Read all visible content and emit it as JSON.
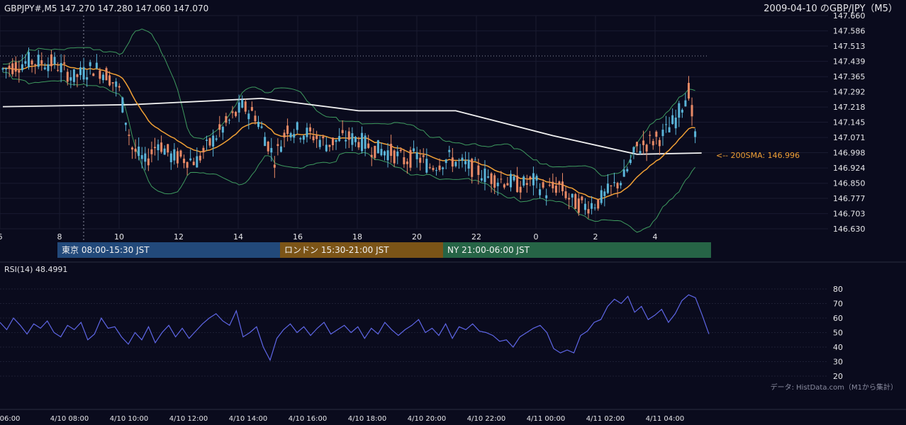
{
  "header": {
    "symbol_info": "GBPJPY#,M5 147.270 147.280 147.060 147.070",
    "title": "2009-04-10 のGBP/JPY（M5）"
  },
  "sessions": [
    {
      "label": "東京 08:00-15:30 JST",
      "color": "#22497a"
    },
    {
      "label": "ロンドン 15:30-21:00 JST",
      "color": "#7b5417"
    },
    {
      "label": "NY 21:00-06:00 JST",
      "color": "#266446"
    }
  ],
  "rsi_panel": {
    "label": "RSI(14) 48.4991"
  },
  "ma_label": "<-- 200SMA: 146.996",
  "source_note": "データ: HistData.com（M1から集計）",
  "colors": {
    "background": "#0a0b1d",
    "up_candle": "#5ab4d8",
    "down_candle": "#e98a66",
    "sma_200": "#f2f2f2",
    "ema": "#f0a035",
    "bollinger": "#3e9a5f",
    "rsi": "#5e66e6"
  },
  "chart_data": [
    {
      "type": "candlestick",
      "title": "GBPJPY#,M5 147.270 147.280 147.060 147.070",
      "y_ticks": [
        "147.660",
        "147.586",
        "147.513",
        "147.439",
        "147.365",
        "147.292",
        "147.218",
        "147.145",
        "147.071",
        "146.998",
        "146.924",
        "146.850",
        "146.777",
        "146.703",
        "146.630"
      ],
      "ylim": [
        146.63,
        147.66
      ],
      "x_ticks": [
        "6",
        "8",
        "10",
        "12",
        "14",
        "16",
        "18",
        "20",
        "22",
        "0",
        "2",
        "4"
      ],
      "bottom_time_labels": [
        "06:00",
        "4/10 08:00",
        "4/10 10:00",
        "4/10 12:00",
        "4/10 14:00",
        "4/10 16:00",
        "4/10 18:00",
        "4/10 20:00",
        "4/10 22:00",
        "4/11 00:00",
        "4/11 02:00",
        "4/11 04:00"
      ],
      "last_ohlc": {
        "open": 147.27,
        "high": 147.28,
        "low": 147.06,
        "close": 147.07
      },
      "overlays": [
        {
          "name": "200SMA",
          "last_value": 146.996
        },
        {
          "name": "EMA"
        },
        {
          "name": "Bollinger Bands"
        }
      ],
      "price_path": [
        [
          0,
          147.4
        ],
        [
          4,
          147.44
        ],
        [
          8,
          147.43
        ],
        [
          11,
          147.36
        ],
        [
          14,
          147.41
        ],
        [
          16,
          147.38
        ],
        [
          18,
          147.3
        ],
        [
          20,
          147.02
        ],
        [
          22,
          146.95
        ],
        [
          24,
          147.05
        ],
        [
          26,
          146.98
        ],
        [
          30,
          146.96
        ],
        [
          33,
          147.08
        ],
        [
          35,
          147.15
        ],
        [
          37,
          147.22
        ],
        [
          39,
          147.18
        ],
        [
          42,
          146.97
        ],
        [
          44,
          147.12
        ],
        [
          46,
          147.1
        ],
        [
          48,
          147.08
        ],
        [
          50,
          147.04
        ],
        [
          53,
          147.07
        ],
        [
          55,
          147.06
        ],
        [
          57,
          147.02
        ],
        [
          60,
          147.0
        ],
        [
          62,
          146.96
        ],
        [
          64,
          146.98
        ],
        [
          66,
          146.93
        ],
        [
          69,
          146.97
        ],
        [
          71,
          146.94
        ],
        [
          73,
          146.92
        ],
        [
          75,
          146.88
        ],
        [
          78,
          146.86
        ],
        [
          80,
          146.84
        ],
        [
          82,
          146.86
        ],
        [
          84,
          146.81
        ],
        [
          86,
          146.84
        ],
        [
          88,
          146.76
        ],
        [
          90,
          146.74
        ],
        [
          92,
          146.76
        ],
        [
          94,
          146.82
        ],
        [
          96,
          146.88
        ],
        [
          98,
          147.02
        ],
        [
          100,
          147.05
        ],
        [
          102,
          147.08
        ],
        [
          104,
          147.16
        ],
        [
          106,
          147.3
        ],
        [
          107,
          147.07
        ]
      ]
    },
    {
      "type": "line",
      "title": "RSI(14) 48.4991",
      "y_ticks": [
        "80",
        "70",
        "60",
        "50",
        "40",
        "30",
        "20"
      ],
      "ylim": [
        20,
        80
      ],
      "last_value": 48.4991,
      "values": [
        57,
        52,
        60,
        55,
        49,
        56,
        53,
        58,
        50,
        47,
        55,
        52,
        57,
        45,
        49,
        60,
        53,
        54,
        47,
        42,
        50,
        45,
        54,
        43,
        50,
        55,
        47,
        53,
        46,
        51,
        56,
        60,
        63,
        58,
        55,
        65,
        47,
        50,
        54,
        40,
        31,
        46,
        52,
        56,
        50,
        54,
        48,
        53,
        57,
        49,
        52,
        55,
        50,
        54,
        46,
        53,
        49,
        57,
        52,
        48,
        52,
        55,
        59,
        50,
        53,
        48,
        56,
        46,
        54,
        52,
        56,
        51,
        50,
        48,
        44,
        45,
        40,
        47,
        50,
        53,
        55,
        50,
        39,
        36,
        38,
        36,
        48,
        51,
        57,
        59,
        68,
        73,
        70,
        75,
        64,
        68,
        59,
        62,
        66,
        57,
        63,
        72,
        76,
        74,
        62,
        49
      ]
    }
  ]
}
